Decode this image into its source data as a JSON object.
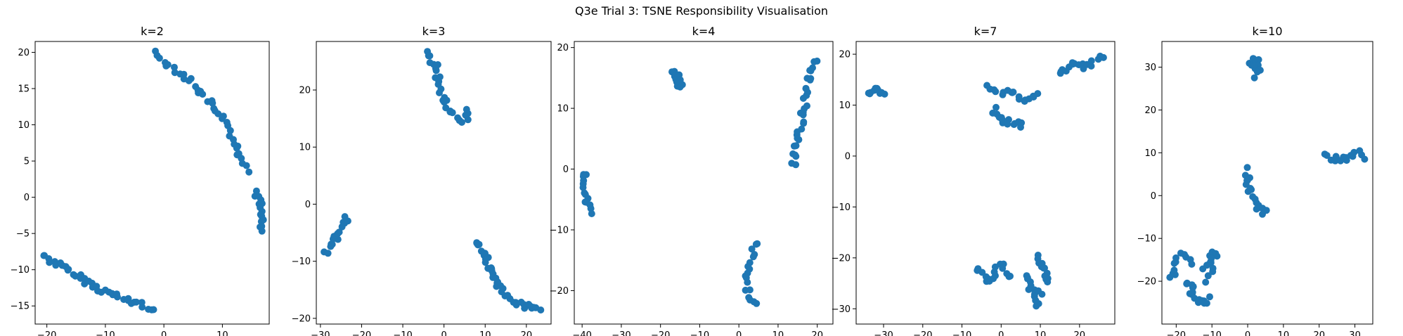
{
  "figure_title": "Q3e Trial 3: TSNE Responsibility Visualisation",
  "point_color": "#1f77b4",
  "chart_data": [
    {
      "type": "scatter",
      "title": "k=2",
      "xlim": [
        -22,
        18
      ],
      "ylim": [
        -17.5,
        21.5
      ],
      "xticks": [
        -20,
        -10,
        0,
        10
      ],
      "yticks": [
        -15,
        -10,
        -5,
        0,
        5,
        10,
        15,
        20
      ],
      "clusters": [
        {
          "path": [
            [
              -20.5,
              -8.0
            ],
            [
              -19,
              -8.8
            ],
            [
              -16,
              -10.3
            ],
            [
              -13,
              -11.7
            ],
            [
              -10,
              -13.0
            ],
            [
              -7,
              -14.0
            ],
            [
              -4,
              -14.8
            ],
            [
              -2,
              -15.4
            ]
          ],
          "n": 40
        },
        {
          "path": [
            [
              -1.5,
              19.8
            ],
            [
              0,
              18.8
            ],
            [
              3,
              17.2
            ],
            [
              6,
              14.8
            ],
            [
              9,
              12.0
            ],
            [
              11.5,
              9.0
            ],
            [
              13,
              6.0
            ],
            [
              14.5,
              3.8
            ]
          ],
          "n": 40
        },
        {
          "path": [
            [
              15.8,
              0.8
            ],
            [
              16.4,
              -0.8
            ],
            [
              16.6,
              -2.5
            ],
            [
              16.4,
              -4.5
            ]
          ],
          "n": 16
        }
      ]
    },
    {
      "type": "scatter",
      "title": "k=3",
      "xlim": [
        -31,
        26
      ],
      "ylim": [
        -21,
        28.5
      ],
      "xticks": [
        -30,
        -20,
        -10,
        0,
        10,
        20
      ],
      "yticks": [
        -20,
        -10,
        0,
        10,
        20
      ],
      "clusters": [
        {
          "path": [
            [
              -28.5,
              -8.5
            ],
            [
              -27,
              -7.0
            ],
            [
              -25.5,
              -5.0
            ],
            [
              -24.5,
              -3.5
            ],
            [
              -23.5,
              -2.5
            ]
          ],
          "n": 16
        },
        {
          "path": [
            [
              -4,
              26.5
            ],
            [
              -2,
              24.0
            ],
            [
              -1,
              20.0
            ],
            [
              1,
              17.0
            ],
            [
              3,
              15.0
            ],
            [
              5,
              14.5
            ],
            [
              6,
              16.5
            ]
          ],
          "n": 30
        },
        {
          "path": [
            [
              7.5,
              -6.5
            ],
            [
              9.5,
              -8.0
            ],
            [
              11,
              -11.0
            ],
            [
              13,
              -14.0
            ],
            [
              15,
              -16.0
            ],
            [
              18,
              -17.5
            ],
            [
              21,
              -18.0
            ],
            [
              23.5,
              -18.5
            ]
          ],
          "n": 40
        }
      ]
    },
    {
      "type": "scatter",
      "title": "k=4",
      "xlim": [
        -42,
        24
      ],
      "ylim": [
        -25.5,
        21
      ],
      "xticks": [
        -40,
        -30,
        -20,
        -10,
        0,
        10,
        20
      ],
      "yticks": [
        -20,
        -10,
        0,
        10,
        20
      ],
      "clusters": [
        {
          "path": [
            [
              -39,
              -0.5
            ],
            [
              -39.2,
              -3.0
            ],
            [
              -39,
              -5.5
            ],
            [
              -37.5,
              -7.0
            ]
          ],
          "n": 14
        },
        {
          "path": [
            [
              -16.5,
              16.0
            ],
            [
              -15.5,
              15.0
            ],
            [
              -14.8,
              13.5
            ]
          ],
          "n": 14
        },
        {
          "path": [
            [
              4,
              -12.0
            ],
            [
              3,
              -15.0
            ],
            [
              2,
              -18.5
            ],
            [
              3,
              -21.0
            ],
            [
              4,
              -22.5
            ]
          ],
          "n": 18
        },
        {
          "path": [
            [
              14,
              0.5
            ],
            [
              15,
              4.0
            ],
            [
              16,
              8.0
            ],
            [
              17,
              12.0
            ],
            [
              18,
              16.0
            ],
            [
              19.5,
              18.0
            ]
          ],
          "n": 32
        }
      ]
    },
    {
      "type": "scatter",
      "title": "k=7",
      "xlim": [
        -37,
        29
      ],
      "ylim": [
        -33,
        22.5
      ],
      "xticks": [
        -30,
        -20,
        -10,
        0,
        10,
        20
      ],
      "yticks": [
        -30,
        -20,
        -10,
        0,
        10,
        20
      ],
      "clusters": [
        {
          "path": [
            [
              -34,
              12.5
            ],
            [
              -31.5,
              13.0
            ],
            [
              -30,
              11.8
            ]
          ],
          "n": 12
        },
        {
          "path": [
            [
              -3,
              13.5
            ],
            [
              0,
              12.5
            ],
            [
              3,
              12.5
            ],
            [
              6,
              11.0
            ],
            [
              9,
              12.5
            ]
          ],
          "n": 18
        },
        {
          "path": [
            [
              -2,
              9.0
            ],
            [
              0,
              7.0
            ],
            [
              3,
              6.5
            ],
            [
              5.5,
              6.0
            ]
          ],
          "n": 14
        },
        {
          "path": [
            [
              15,
              16.0
            ],
            [
              18,
              18.0
            ],
            [
              21,
              17.5
            ],
            [
              24,
              18.5
            ],
            [
              26,
              19.5
            ]
          ],
          "n": 18
        },
        {
          "path": [
            [
              -6,
              -22.0
            ],
            [
              -3,
              -24.5
            ],
            [
              0,
              -21.0
            ],
            [
              2,
              -24.0
            ]
          ],
          "n": 18
        },
        {
          "path": [
            [
              6,
              -23.5
            ],
            [
              8,
              -26.5
            ],
            [
              9,
              -29.0
            ],
            [
              10,
              -27.0
            ]
          ],
          "n": 16
        },
        {
          "path": [
            [
              9,
              -20.0
            ],
            [
              11,
              -22.0
            ],
            [
              12,
              -25.0
            ]
          ],
          "n": 12
        }
      ]
    },
    {
      "type": "scatter",
      "title": "k=10",
      "xlim": [
        -24,
        35
      ],
      "ylim": [
        -30,
        36
      ],
      "xticks": [
        -20,
        -10,
        0,
        10,
        20,
        30
      ],
      "yticks": [
        -20,
        -10,
        0,
        10,
        20,
        30
      ],
      "clusters": [
        {
          "path": [
            [
              1,
              30.0
            ],
            [
              2,
              32.5
            ],
            [
              3,
              29.5
            ],
            [
              2.5,
              28.0
            ]
          ],
          "n": 14
        },
        {
          "path": [
            [
              22,
              9.5
            ],
            [
              25,
              8.0
            ],
            [
              28,
              9.0
            ],
            [
              31,
              10.0
            ],
            [
              32,
              9.0
            ]
          ],
          "n": 16
        },
        {
          "path": [
            [
              0,
              6.0
            ],
            [
              0,
              2.0
            ],
            [
              2,
              0.0
            ],
            [
              3,
              -3.5
            ],
            [
              5,
              -4.0
            ]
          ],
          "n": 18
        },
        {
          "path": [
            [
              -21,
              -19.0
            ],
            [
              -19,
              -14.0
            ],
            [
              -16,
              -15.5
            ]
          ],
          "n": 12
        },
        {
          "path": [
            [
              -17,
              -20.0
            ],
            [
              -15,
              -23.0
            ],
            [
              -13,
              -25.0
            ],
            [
              -11,
              -24.0
            ]
          ],
          "n": 16
        },
        {
          "path": [
            [
              -12,
              -17.0
            ],
            [
              -10,
              -14.0
            ],
            [
              -9,
              -13.0
            ],
            [
              -11,
              -20.0
            ]
          ],
          "n": 14
        }
      ]
    }
  ]
}
